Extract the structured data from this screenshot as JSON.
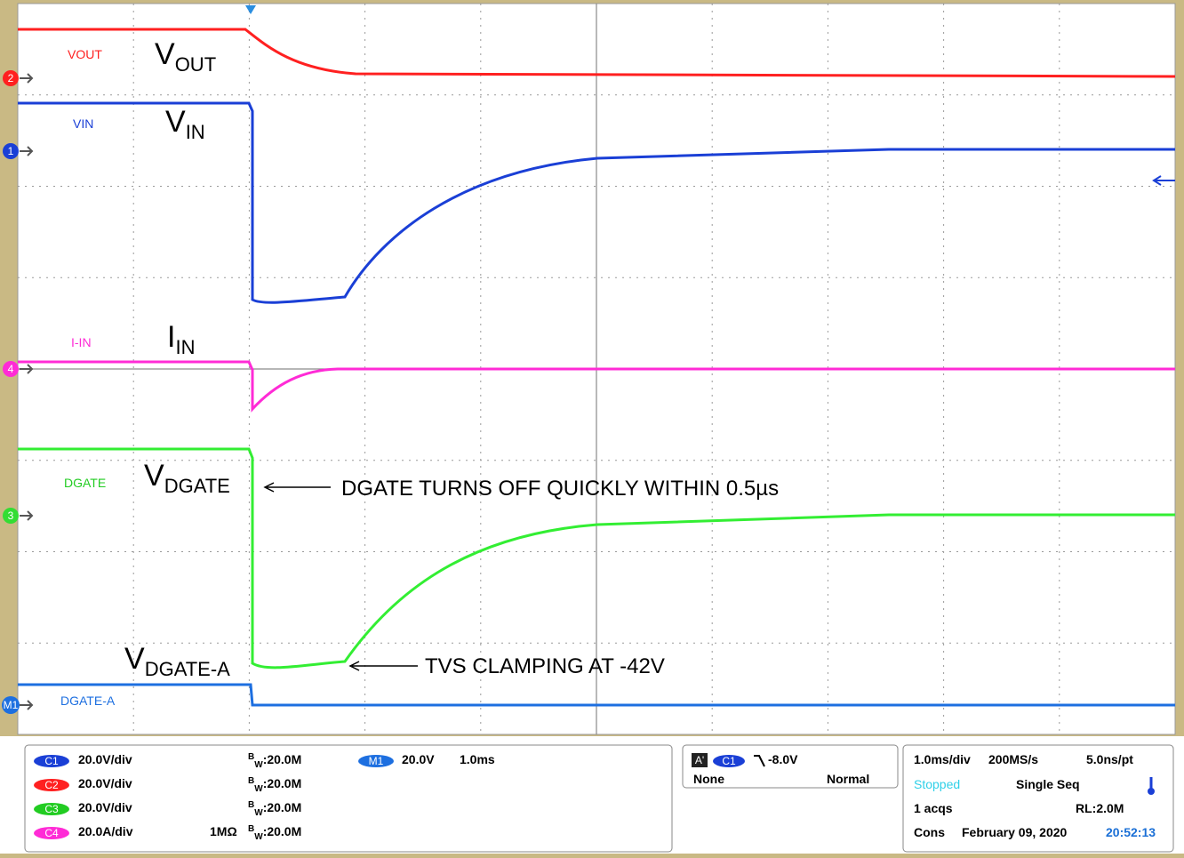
{
  "traces": {
    "vout": "VOUT",
    "vin": "VIN",
    "iin": "I-IN",
    "dgate": "DGATE",
    "dgatea": "DGATE-A"
  },
  "markers": {
    "c2": "2",
    "c1": "1",
    "c4": "4",
    "c3": "3",
    "m1": "M1"
  },
  "annotations": {
    "vout": {
      "main": "V",
      "sub": "OUT"
    },
    "vin": {
      "main": "V",
      "sub": "IN"
    },
    "iin": {
      "main": "I",
      "sub": "IN"
    },
    "vdgate": {
      "main": "V",
      "sub": "DGATE"
    },
    "vdgatea": {
      "main": "V",
      "sub": "DGATE-A"
    },
    "dgate_off": "DGATE TURNS OFF QUICKLY WITHIN 0.5µs",
    "tvs": "TVS CLAMPING AT -42V"
  },
  "channels": [
    {
      "badge": "C1",
      "scale": "20.0V/div",
      "bw": {
        "sup": "B",
        "sub": "W",
        "text": ":20.0M"
      }
    },
    {
      "badge": "C2",
      "scale": "20.0V/div",
      "bw": {
        "sup": "B",
        "sub": "W",
        "text": ":20.0M"
      }
    },
    {
      "badge": "C3",
      "scale": "20.0V/div",
      "bw": {
        "sup": "B",
        "sub": "W",
        "text": ":20.0M"
      }
    },
    {
      "badge": "C4",
      "scale": "20.0A/div",
      "impedance": "1MΩ",
      "bw": {
        "sup": "B",
        "sub": "W",
        "text": ":20.0M"
      }
    }
  ],
  "math": {
    "badge": "M1",
    "scale": "20.0V",
    "time": "1.0ms"
  },
  "trigger": {
    "mode_badge": "A'",
    "source": "C1",
    "level": "-8.0V",
    "coupling": "None",
    "type": "Normal"
  },
  "timebase": {
    "scale": "1.0ms/div",
    "rate": "200MS/s",
    "resolution": "5.0ns/pt",
    "state": "Stopped",
    "acq_mode": "Single Seq",
    "acqs": "1 acqs",
    "record": "RL:2.0M",
    "display": "Cons",
    "date": "February 09, 2020",
    "time": "20:52:13"
  }
}
